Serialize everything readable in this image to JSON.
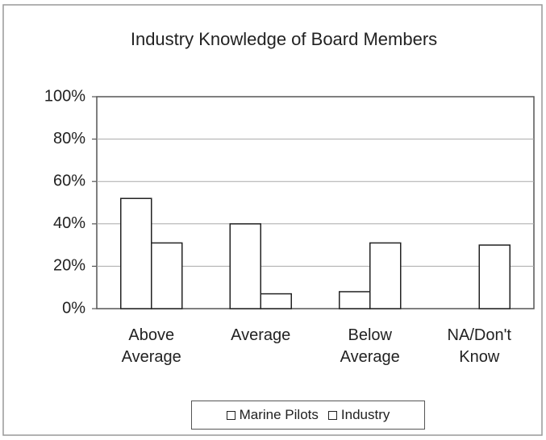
{
  "chart_data": {
    "type": "bar",
    "title": "Industry Knowledge of Board Members",
    "categories": [
      "Above Average",
      "Average",
      "Below Average",
      "NA/Don't Know"
    ],
    "series": [
      {
        "name": "Marine Pilots",
        "color": "#ffffff",
        "values": [
          52,
          40,
          8,
          0
        ]
      },
      {
        "name": "Industry",
        "color": "#ffffff",
        "values": [
          31,
          7,
          31,
          30
        ]
      }
    ],
    "ylim": [
      0,
      100
    ],
    "yticks": [
      {
        "value": 0,
        "label": "0%"
      },
      {
        "value": 20,
        "label": "20%"
      },
      {
        "value": 40,
        "label": "40%"
      },
      {
        "value": 60,
        "label": "60%"
      },
      {
        "value": 80,
        "label": "80%"
      },
      {
        "value": 100,
        "label": "100%"
      }
    ],
    "grid": true
  }
}
